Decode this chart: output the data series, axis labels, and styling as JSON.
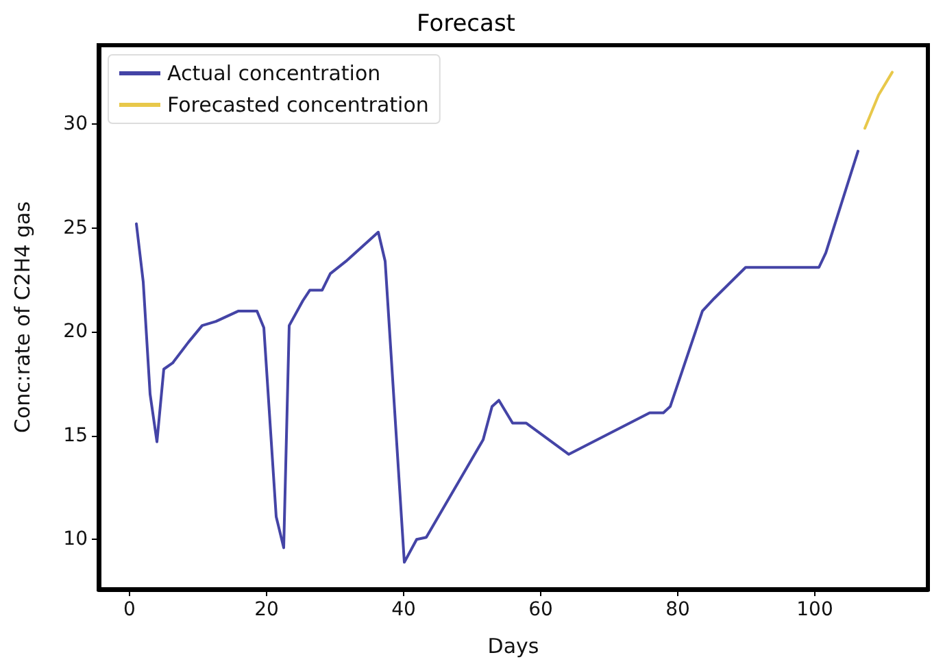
{
  "chart_data": {
    "type": "line",
    "title": "Forecast",
    "xlabel": "Days",
    "ylabel": "Conc:rate of C2H4 gas",
    "xlim": [
      -4.5,
      116.5
    ],
    "xticks": [
      0,
      20,
      40,
      60,
      80,
      100
    ],
    "ylim": [
      7.6,
      33.8
    ],
    "yticks": [
      10,
      15,
      20,
      25,
      30
    ],
    "grid": false,
    "legend": "top left",
    "marker": "none",
    "line_style": "solid",
    "series": [
      {
        "name": "Actual concentration",
        "color": "#4444a6",
        "x": [
          1,
          2,
          3,
          4,
          5,
          6.3,
          8.6,
          10.6,
          12.6,
          15.9,
          18.6,
          19.6,
          21.4,
          22.5,
          23.3,
          25.3,
          26.3,
          28.1,
          29.3,
          31.6,
          36.3,
          37.3,
          40.1,
          41.9,
          43.3,
          48.6,
          51.6,
          52.9,
          53.9,
          55.9,
          57.9,
          64.1,
          75.9,
          77.9,
          78.9,
          83.6,
          85.3,
          89.9,
          100.6,
          101.6,
          106.3
        ],
        "values": [
          25.2,
          22.4,
          17.0,
          14.7,
          18.2,
          18.5,
          19.5,
          20.3,
          20.5,
          21.0,
          21.0,
          20.2,
          11.1,
          9.6,
          20.3,
          21.5,
          22.0,
          22.0,
          22.8,
          23.4,
          24.8,
          23.4,
          8.9,
          10.0,
          10.1,
          13.1,
          14.8,
          16.4,
          16.7,
          15.6,
          15.6,
          14.1,
          16.1,
          16.1,
          16.4,
          21.0,
          21.6,
          23.1,
          23.1,
          23.8,
          28.7
        ]
      },
      {
        "name": "Forecasted concentration",
        "color": "#e8c84a",
        "x": [
          107.3,
          109.3,
          111.3
        ],
        "values": [
          29.8,
          31.4,
          32.5
        ]
      }
    ]
  }
}
